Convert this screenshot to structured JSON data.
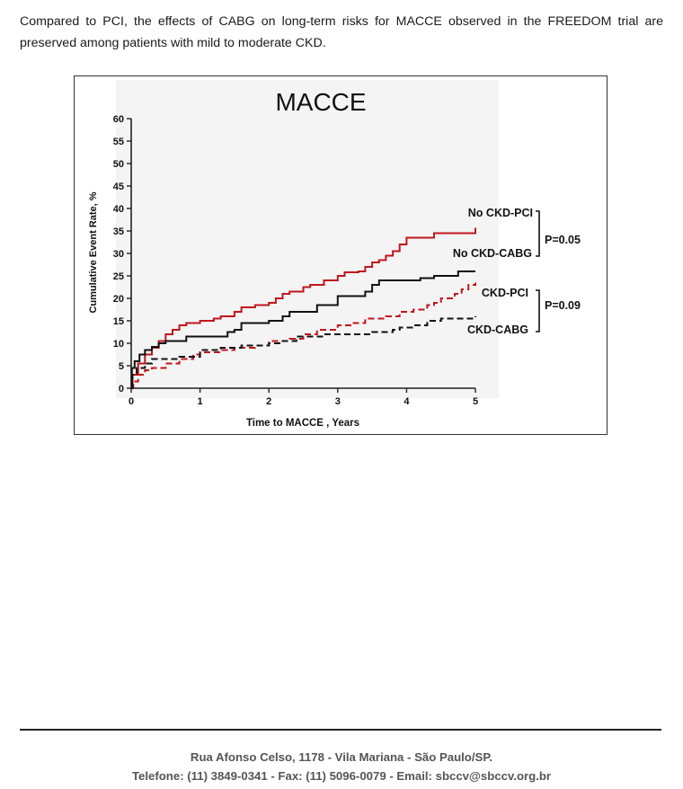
{
  "caption": "Compared to PCI, the effects of CABG on long-term risks for MACCE observed in the FREEDOM trial are preserved among patients with mild to moderate CKD.",
  "chart_data": {
    "type": "line",
    "title": "MACCE",
    "xlabel": "Time to MACCE , Years",
    "ylabel": "Cumulative Event Rate, %",
    "xlim": [
      0,
      5
    ],
    "ylim": [
      0,
      60
    ],
    "x_ticks": [
      0,
      1,
      2,
      3,
      4,
      5
    ],
    "y_ticks": [
      0,
      5,
      10,
      15,
      20,
      25,
      30,
      35,
      40,
      45,
      50,
      55,
      60
    ],
    "grid": false,
    "series": [
      {
        "name": "No CKD-PCI",
        "color": "#c0161c",
        "style": "solid",
        "points": [
          [
            0,
            0
          ],
          [
            0.02,
            3
          ],
          [
            0.1,
            5.5
          ],
          [
            0.2,
            7.5
          ],
          [
            0.3,
            9
          ],
          [
            0.4,
            10.5
          ],
          [
            0.5,
            12
          ],
          [
            0.6,
            13
          ],
          [
            0.7,
            14
          ],
          [
            0.8,
            14.5
          ],
          [
            1,
            15
          ],
          [
            1.2,
            15.5
          ],
          [
            1.3,
            16
          ],
          [
            1.5,
            17
          ],
          [
            1.6,
            18
          ],
          [
            1.8,
            18.5
          ],
          [
            2,
            19
          ],
          [
            2.1,
            20
          ],
          [
            2.2,
            21
          ],
          [
            2.3,
            21.5
          ],
          [
            2.5,
            22.5
          ],
          [
            2.6,
            23
          ],
          [
            2.8,
            24
          ],
          [
            3,
            25
          ],
          [
            3.1,
            25.8
          ],
          [
            3.3,
            26
          ],
          [
            3.4,
            27
          ],
          [
            3.5,
            28
          ],
          [
            3.6,
            28.5
          ],
          [
            3.7,
            29.5
          ],
          [
            3.8,
            30.5
          ],
          [
            3.9,
            32
          ],
          [
            4.0,
            33.5
          ],
          [
            4.3,
            33.5
          ],
          [
            4.4,
            34.5
          ],
          [
            4.95,
            34.5
          ],
          [
            5,
            35.7
          ]
        ]
      },
      {
        "name": "No CKD-CABG",
        "color": "#111111",
        "style": "solid",
        "points": [
          [
            0,
            0
          ],
          [
            0.01,
            4.5
          ],
          [
            0.05,
            6
          ],
          [
            0.12,
            7.5
          ],
          [
            0.2,
            8.5
          ],
          [
            0.3,
            9.2
          ],
          [
            0.4,
            10
          ],
          [
            0.5,
            10.5
          ],
          [
            0.7,
            10.5
          ],
          [
            0.8,
            11.5
          ],
          [
            1.3,
            11.5
          ],
          [
            1.4,
            12.5
          ],
          [
            1.5,
            13
          ],
          [
            1.6,
            14.5
          ],
          [
            1.9,
            14.5
          ],
          [
            2,
            15
          ],
          [
            2.2,
            16
          ],
          [
            2.3,
            17
          ],
          [
            2.6,
            17
          ],
          [
            2.7,
            18.5
          ],
          [
            2.9,
            18.5
          ],
          [
            3,
            20.5
          ],
          [
            3.3,
            20.5
          ],
          [
            3.4,
            21.5
          ],
          [
            3.5,
            23
          ],
          [
            3.6,
            24
          ],
          [
            4.1,
            24
          ],
          [
            4.2,
            24.5
          ],
          [
            4.4,
            25
          ],
          [
            4.7,
            25
          ],
          [
            4.75,
            26
          ],
          [
            5,
            26
          ]
        ]
      },
      {
        "name": "CKD-PCI",
        "color": "#c0161c",
        "style": "dashed",
        "points": [
          [
            0,
            0
          ],
          [
            0.03,
            1.5
          ],
          [
            0.1,
            3
          ],
          [
            0.2,
            4
          ],
          [
            0.3,
            4.5
          ],
          [
            0.5,
            5.5
          ],
          [
            0.7,
            6.5
          ],
          [
            0.9,
            7.5
          ],
          [
            1,
            8
          ],
          [
            1.3,
            8.5
          ],
          [
            1.5,
            9
          ],
          [
            1.8,
            9.5
          ],
          [
            2,
            10.5
          ],
          [
            2.3,
            11
          ],
          [
            2.5,
            12
          ],
          [
            2.7,
            13
          ],
          [
            3,
            14
          ],
          [
            3.2,
            14.5
          ],
          [
            3.4,
            15.5
          ],
          [
            3.7,
            16
          ],
          [
            3.9,
            17
          ],
          [
            4.1,
            17.5
          ],
          [
            4.3,
            18.5
          ],
          [
            4.4,
            19
          ],
          [
            4.5,
            20
          ],
          [
            4.7,
            21
          ],
          [
            4.8,
            22
          ],
          [
            4.9,
            23
          ],
          [
            5,
            23.5
          ]
        ]
      },
      {
        "name": "CKD-CABG",
        "color": "#111111",
        "style": "dashed",
        "points": [
          [
            0,
            0
          ],
          [
            0.02,
            3
          ],
          [
            0.08,
            4.5
          ],
          [
            0.2,
            5.5
          ],
          [
            0.3,
            6.5
          ],
          [
            0.6,
            6.5
          ],
          [
            0.7,
            7
          ],
          [
            1,
            8.5
          ],
          [
            1.3,
            9
          ],
          [
            1.6,
            9.5
          ],
          [
            2,
            10
          ],
          [
            2.2,
            10.5
          ],
          [
            2.4,
            11.5
          ],
          [
            2.6,
            11.5
          ],
          [
            2.8,
            12
          ],
          [
            3.3,
            12
          ],
          [
            3.5,
            12.5
          ],
          [
            3.8,
            13
          ],
          [
            3.9,
            13.5
          ],
          [
            4.1,
            14
          ],
          [
            4.3,
            15
          ],
          [
            4.5,
            15.5
          ],
          [
            4.9,
            15.5
          ],
          [
            5,
            16
          ]
        ]
      }
    ],
    "annotations": {
      "labels": [
        "No CKD-PCI",
        "No CKD-CABG",
        "CKD-PCI",
        "CKD-CABG"
      ],
      "p_values": [
        "P=0.05",
        "P=0.09"
      ]
    }
  },
  "footer": {
    "address": "Rua Afonso Celso, 1178 - Vila Mariana - São Paulo/SP.",
    "contact": "Telefone: (11) 3849-0341 - Fax: (11) 5096-0079 - Email: sbccv@sbccv.org.br"
  }
}
